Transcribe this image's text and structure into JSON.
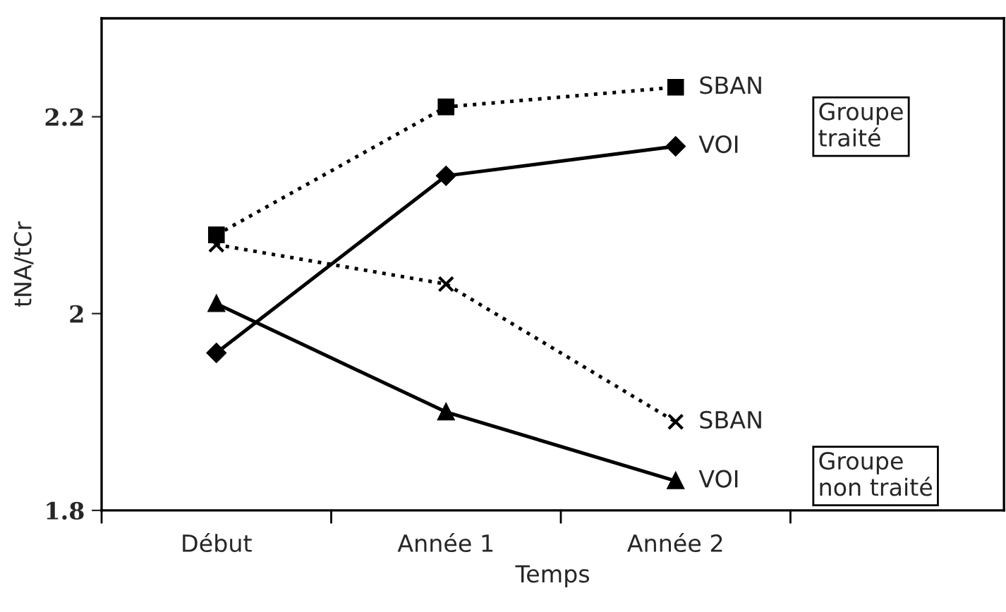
{
  "chart_data": {
    "type": "line",
    "xlabel": "Temps",
    "ylabel": "tNA/tCr",
    "categories": [
      "Début",
      "Année 1",
      "Année 2"
    ],
    "series": [
      {
        "name": "SBAN",
        "color": "#000000",
        "values": [
          2.08,
          2.21,
          2.23
        ],
        "marker": "square",
        "line_style": "dotted"
      },
      {
        "name": "VOI",
        "color": "#000000",
        "values": [
          1.96,
          2.14,
          2.17
        ],
        "marker": "diamond",
        "line_style": "solid"
      },
      {
        "name": "SBAN",
        "color": "#000000",
        "values": [
          2.07,
          2.03,
          1.89
        ],
        "marker": "cross",
        "line_style": "dotted"
      },
      {
        "name": "VOI",
        "color": "#000000",
        "values": [
          2.01,
          1.9,
          1.83
        ],
        "marker": "triangle",
        "line_style": "solid"
      }
    ],
    "ylim": [
      1.8,
      2.3
    ],
    "yticks": [
      {
        "value": 1.8,
        "label": "1.8"
      },
      2,
      {
        "value": 2.2,
        "label": "2.2"
      }
    ],
    "annotations": [
      "Groupe\ntraité",
      "Groupe\nnon traité"
    ],
    "grid": false,
    "legend": false
  }
}
